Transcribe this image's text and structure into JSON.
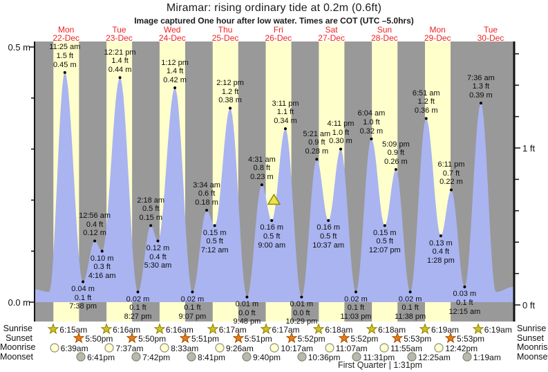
{
  "page": {
    "title": "Miramar: rising  ordinary tide at 0.2m (0.6ft)",
    "subtitle": "Image captured One hour after low water. Times are COT (UTC –5.0hrs)"
  },
  "chart_data": {
    "type": "area",
    "title": "Miramar: rising  ordinary tide at 0.2m (0.6ft)",
    "subtitle": "Image captured One hour after low water. Times are COT (UTC –5.0hrs)",
    "x_range_days": [
      -0.095,
      8.93
    ],
    "y_axis": {
      "labels": {
        "m_top": "0.5 m",
        "m_bottom": "0.0 m",
        "ft_top": "1 ft",
        "ft_bottom": "0 ft"
      },
      "m_tick_step": 0.1,
      "m_max": 0.5,
      "ft_tick_step": 0.2,
      "ft_max": 1.6
    },
    "days": [
      {
        "name": "Mon",
        "date": "22-Dec"
      },
      {
        "name": "Tue",
        "date": "23-Dec"
      },
      {
        "name": "Wed",
        "date": "24-Dec"
      },
      {
        "name": "Thu",
        "date": "25-Dec"
      },
      {
        "name": "Fri",
        "date": "26-Dec"
      },
      {
        "name": "Sat",
        "date": "27-Dec"
      },
      {
        "name": "Sun",
        "date": "28-Dec"
      },
      {
        "name": "Mon",
        "date": "29-Dec"
      },
      {
        "name": "Tue",
        "date": "30-Dec"
      }
    ],
    "tide_events": [
      {
        "day": 0,
        "time": "11:25 am",
        "kind": "high",
        "height_m": 0.45,
        "m_label": "0.45 m",
        "ft_label": "1.5 ft"
      },
      {
        "day": 0,
        "time": "7:38 pm",
        "kind": "low",
        "height_m": 0.04,
        "m_label": "0.04 m",
        "ft_label": "0.1 ft"
      },
      {
        "day": 1,
        "time": "12:56 am",
        "kind": "high",
        "height_m": 0.12,
        "m_label": "0.12 m",
        "ft_label": "0.4 ft"
      },
      {
        "day": 1,
        "time": "4:16 am",
        "kind": "low",
        "height_m": 0.1,
        "m_label": "0.10 m",
        "ft_label": "0.3 ft"
      },
      {
        "day": 1,
        "time": "12:21 pm",
        "kind": "high",
        "height_m": 0.44,
        "m_label": "0.44 m",
        "ft_label": "1.4 ft"
      },
      {
        "day": 1,
        "time": "8:27 pm",
        "kind": "low",
        "height_m": 0.02,
        "m_label": "0.02 m",
        "ft_label": "0.1 ft"
      },
      {
        "day": 2,
        "time": "2:18 am",
        "kind": "high",
        "height_m": 0.15,
        "m_label": "0.15 m",
        "ft_label": "0.5 ft"
      },
      {
        "day": 2,
        "time": "5:30 am",
        "kind": "low",
        "height_m": 0.12,
        "m_label": "0.12 m",
        "ft_label": "0.4 ft"
      },
      {
        "day": 2,
        "time": "1:12 pm",
        "kind": "high",
        "height_m": 0.42,
        "m_label": "0.42 m",
        "ft_label": "1.4 ft"
      },
      {
        "day": 2,
        "time": "9:07 pm",
        "kind": "low",
        "height_m": 0.02,
        "m_label": "0.02 m",
        "ft_label": "0.1 ft"
      },
      {
        "day": 3,
        "time": "3:34 am",
        "kind": "high",
        "height_m": 0.18,
        "m_label": "0.18 m",
        "ft_label": "0.6 ft"
      },
      {
        "day": 3,
        "time": "7:12 am",
        "kind": "low",
        "height_m": 0.15,
        "m_label": "0.15 m",
        "ft_label": "0.5 ft"
      },
      {
        "day": 3,
        "time": "2:12 pm",
        "kind": "high",
        "height_m": 0.38,
        "m_label": "0.38 m",
        "ft_label": "1.2 ft"
      },
      {
        "day": 3,
        "time": "9:48 pm",
        "kind": "low",
        "height_m": 0.01,
        "m_label": "0.01 m",
        "ft_label": "0.0 ft"
      },
      {
        "day": 4,
        "time": "4:31 am",
        "kind": "high",
        "height_m": 0.23,
        "m_label": "0.23 m",
        "ft_label": "0.8 ft"
      },
      {
        "day": 4,
        "time": "9:00 am",
        "kind": "low",
        "height_m": 0.16,
        "m_label": "0.16 m",
        "ft_label": "0.5 ft"
      },
      {
        "day": 4,
        "time": "3:11 pm",
        "kind": "high",
        "height_m": 0.34,
        "m_label": "0.34 m",
        "ft_label": "1.1 ft"
      },
      {
        "day": 4,
        "time": "10:29 pm",
        "kind": "low",
        "height_m": 0.01,
        "m_label": "0.01 m",
        "ft_label": "0.0 ft"
      },
      {
        "day": 5,
        "time": "5:21 am",
        "kind": "high",
        "height_m": 0.28,
        "m_label": "0.28 m",
        "ft_label": "0.9 ft"
      },
      {
        "day": 5,
        "time": "10:37 am",
        "kind": "low",
        "height_m": 0.16,
        "m_label": "0.16 m",
        "ft_label": "0.5 ft"
      },
      {
        "day": 5,
        "time": "4:11 pm",
        "kind": "high",
        "height_m": 0.3,
        "m_label": "0.30 m",
        "ft_label": "1.0 ft"
      },
      {
        "day": 5,
        "time": "11:03 pm",
        "kind": "low",
        "height_m": 0.02,
        "m_label": "0.02 m",
        "ft_label": "0.1 ft"
      },
      {
        "day": 6,
        "time": "6:04 am",
        "kind": "high",
        "height_m": 0.32,
        "m_label": "0.32 m",
        "ft_label": "1.0 ft"
      },
      {
        "day": 6,
        "time": "12:07 pm",
        "kind": "low",
        "height_m": 0.15,
        "m_label": "0.15 m",
        "ft_label": "0.5 ft"
      },
      {
        "day": 6,
        "time": "5:09 pm",
        "kind": "high",
        "height_m": 0.26,
        "m_label": "0.26 m",
        "ft_label": "0.9 ft"
      },
      {
        "day": 6,
        "time": "11:38 pm",
        "kind": "low",
        "height_m": 0.02,
        "m_label": "0.02 m",
        "ft_label": "0.1 ft"
      },
      {
        "day": 7,
        "time": "6:51 am",
        "kind": "high",
        "height_m": 0.36,
        "m_label": "0.36 m",
        "ft_label": "1.2 ft"
      },
      {
        "day": 7,
        "time": "1:28 pm",
        "kind": "low",
        "height_m": 0.13,
        "m_label": "0.13 m",
        "ft_label": "0.4 ft"
      },
      {
        "day": 7,
        "time": "6:11 pm",
        "kind": "high",
        "height_m": 0.22,
        "m_label": "0.22 m",
        "ft_label": "0.7 ft"
      },
      {
        "day": 8,
        "time": "12:15 am",
        "kind": "low",
        "height_m": 0.03,
        "m_label": "0.03 m",
        "ft_label": "0.1 ft"
      },
      {
        "day": 8,
        "time": "7:36 am",
        "kind": "high",
        "height_m": 0.39,
        "m_label": "0.39 m",
        "ft_label": "1.3 ft"
      }
    ],
    "curve_edge_pads": {
      "start": [
        [
          -0.095,
          0.025
        ],
        [
          0.18,
          0.02
        ]
      ],
      "end": [
        [
          8.6,
          0.02
        ],
        [
          8.93,
          0.03
        ]
      ]
    },
    "marker": {
      "shape": "triangle",
      "day_fraction": 4.417,
      "height_m": 0.2
    },
    "colors": {
      "day_band": "#ffffcc",
      "night_band": "#999999",
      "water": "#aab4f0",
      "date_red": "#ee2222",
      "axis": "#111111",
      "dot": "#000000",
      "marker_fill": "#f0e34a",
      "marker_stroke": "#8a8a00",
      "sunrise_icon": "#cfc41f",
      "sunrise_icon_stroke": "#8a7d00",
      "sunset_icon": "#e97b14",
      "sunset_icon_stroke": "#9c4a00",
      "moonrise_icon": "#ffffd0",
      "moonrise_icon_stroke": "#8c8c7a",
      "moonset_icon": "#b9b9aa",
      "moonset_icon_stroke": "#80807a"
    }
  },
  "astro": {
    "row_labels": [
      "Sunrise",
      "Sunset",
      "Moonrise",
      "Moonset"
    ],
    "rows": [
      {
        "name": "sunrise",
        "icon": "sunrise-star-icon",
        "events": [
          {
            "day": 0,
            "time": "6:15am"
          },
          {
            "day": 1,
            "time": "6:16am"
          },
          {
            "day": 2,
            "time": "6:16am"
          },
          {
            "day": 3,
            "time": "6:17am"
          },
          {
            "day": 4,
            "time": "6:17am"
          },
          {
            "day": 5,
            "time": "6:18am"
          },
          {
            "day": 6,
            "time": "6:18am"
          },
          {
            "day": 7,
            "time": "6:19am"
          },
          {
            "day": 8,
            "time": "6:19am"
          }
        ]
      },
      {
        "name": "sunset",
        "icon": "sunset-star-icon",
        "events": [
          {
            "day": 0,
            "time": "5:50pm"
          },
          {
            "day": 1,
            "time": "5:50pm"
          },
          {
            "day": 2,
            "time": "5:51pm"
          },
          {
            "day": 3,
            "time": "5:51pm"
          },
          {
            "day": 4,
            "time": "5:52pm"
          },
          {
            "day": 5,
            "time": "5:52pm"
          },
          {
            "day": 6,
            "time": "5:53pm"
          },
          {
            "day": 7,
            "time": "5:53pm"
          }
        ]
      },
      {
        "name": "moonrise",
        "icon": "moonrise-circle-icon",
        "events": [
          {
            "day": 0,
            "time": "6:39am"
          },
          {
            "day": 1,
            "time": "7:37am"
          },
          {
            "day": 2,
            "time": "8:33am"
          },
          {
            "day": 3,
            "time": "9:26am"
          },
          {
            "day": 4,
            "time": "10:17am"
          },
          {
            "day": 5,
            "time": "11:07am"
          },
          {
            "day": 6,
            "time": "11:55am"
          },
          {
            "day": 7,
            "time": "12:42pm"
          }
        ]
      },
      {
        "name": "moonset",
        "icon": "moonset-circle-icon",
        "events": [
          {
            "day": 0,
            "time": "6:41pm"
          },
          {
            "day": 1,
            "time": "7:42pm"
          },
          {
            "day": 2,
            "time": "8:41pm"
          },
          {
            "day": 3,
            "time": "9:40pm"
          },
          {
            "day": 4,
            "time": "10:36pm"
          },
          {
            "day": 5,
            "time": "11:31pm"
          },
          {
            "day": 7,
            "time": "12:25am"
          },
          {
            "day": 8,
            "time": "1:19am"
          }
        ]
      }
    ],
    "note": "First Quarter | 1:31pm"
  }
}
